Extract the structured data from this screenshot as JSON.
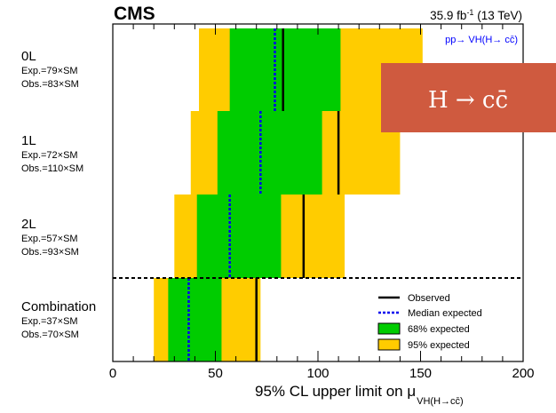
{
  "chart_data": {
    "type": "horizontal-bar-limits",
    "experiment": "CMS",
    "lumi": "35.9 fb",
    "lumi_sup": "-1",
    "energy": "(13 TeV)",
    "process": "pp→ VH(H→ cc̄)",
    "banner": "H  → cc̄",
    "xlabel": "95% CL upper limit on μ",
    "xlabel_sub": "VH(H→cc̄)",
    "xlim": [
      0,
      200
    ],
    "xticks": [
      0,
      50,
      100,
      150,
      200
    ],
    "categories": [
      {
        "name": "0L",
        "exp_label": "Exp.=79×SM",
        "obs_label": "Obs.=83×SM",
        "observed": 83,
        "expected": 79,
        "band68": [
          57,
          111
        ],
        "band95": [
          42,
          151
        ]
      },
      {
        "name": "1L",
        "exp_label": "Exp.=72×SM",
        "obs_label": "Obs.=110×SM",
        "observed": 110,
        "expected": 72,
        "band68": [
          51,
          102
        ],
        "band95": [
          38,
          140
        ]
      },
      {
        "name": "2L",
        "exp_label": "Exp.=57×SM",
        "obs_label": "Obs.=93×SM",
        "observed": 93,
        "expected": 57,
        "band68": [
          41,
          82
        ],
        "band95": [
          30,
          113
        ]
      },
      {
        "name": "Combination",
        "exp_label": "Exp.=37×SM",
        "obs_label": "Obs.=70×SM",
        "observed": 70,
        "expected": 37,
        "band68": [
          27,
          53
        ],
        "band95": [
          20,
          72
        ]
      }
    ],
    "legend": {
      "placement": "bottom-right",
      "observed": "Observed",
      "median": "Median expected",
      "band68": "68% expected",
      "band95": "95% expected"
    },
    "colors": {
      "band68": "#00cc00",
      "band95": "#ffcc00",
      "median": "#0000ee",
      "observed": "#000000",
      "banner_bg": "#cf5a3f",
      "banner_text": "#ffffff",
      "process_text": "#0000ff"
    }
  }
}
